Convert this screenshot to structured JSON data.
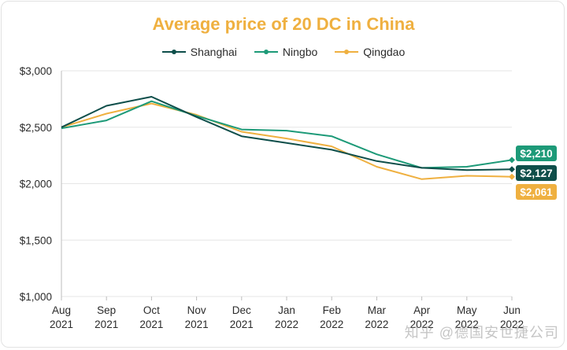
{
  "chart_data": {
    "type": "line",
    "title": "Average price of 20 DC in China",
    "xlabel": "",
    "ylabel": "",
    "categories": [
      [
        "Aug",
        "2021"
      ],
      [
        "Sep",
        "2021"
      ],
      [
        "Oct",
        "2021"
      ],
      [
        "Nov",
        "2021"
      ],
      [
        "Dec",
        "2021"
      ],
      [
        "Jan",
        "2022"
      ],
      [
        "Feb",
        "2022"
      ],
      [
        "Mar",
        "2022"
      ],
      [
        "Apr",
        "2022"
      ],
      [
        "May",
        "2022"
      ],
      [
        "Jun",
        "2022"
      ]
    ],
    "ylim": [
      1000,
      3000
    ],
    "yticks": [
      1000,
      1500,
      2000,
      2500,
      3000
    ],
    "ytick_labels": [
      "$1,000",
      "$1,500",
      "$2,000",
      "$2,500",
      "$3,000"
    ],
    "grid": true,
    "legend_position": "top-center",
    "series": [
      {
        "name": "Shanghai",
        "color": "#0e4e4a",
        "values": [
          2500,
          2690,
          2770,
          2590,
          2420,
          2360,
          2300,
          2200,
          2140,
          2120,
          2127
        ],
        "end_label": "$2,127"
      },
      {
        "name": "Ningbo",
        "color": "#1d9a78",
        "values": [
          2490,
          2560,
          2730,
          2600,
          2480,
          2470,
          2420,
          2260,
          2140,
          2150,
          2210
        ],
        "end_label": "$2,210"
      },
      {
        "name": "Qingdao",
        "color": "#efb040",
        "values": [
          2500,
          2620,
          2710,
          2610,
          2460,
          2400,
          2330,
          2150,
          2040,
          2070,
          2061
        ],
        "end_label": "$2,061"
      }
    ]
  },
  "watermark": "知乎 @德国安世捷公司"
}
